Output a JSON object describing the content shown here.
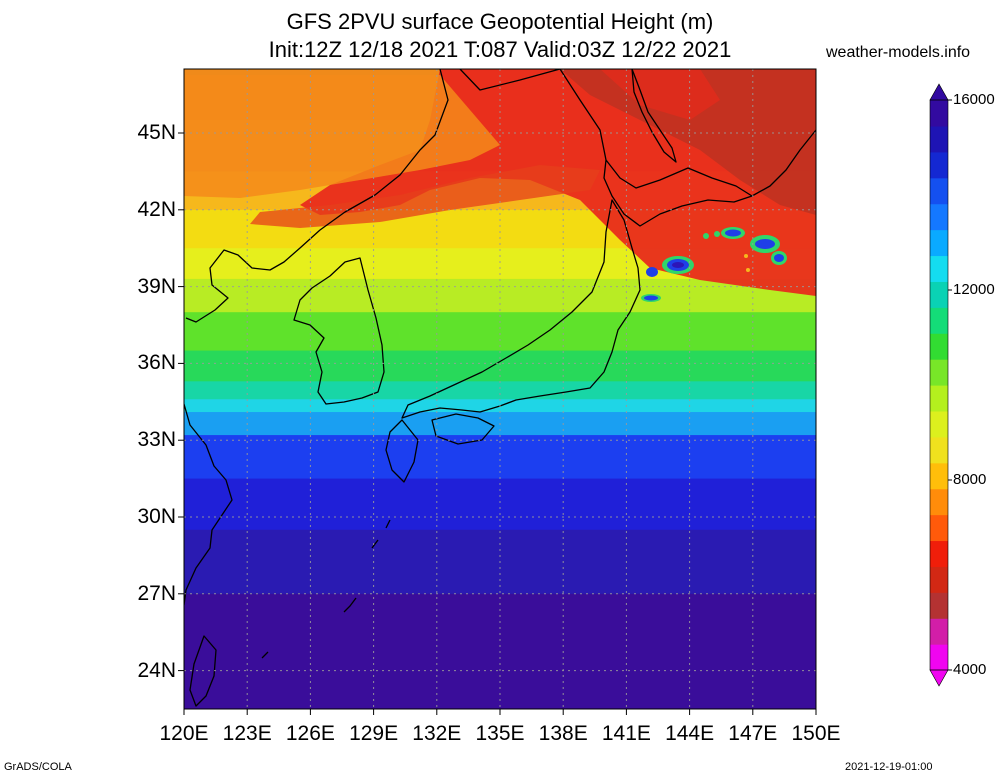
{
  "title": {
    "line1": "GFS 2PVU surface Geopotential Height (m)",
    "line2": "Init:12Z 12/18 2021 T:087 Valid:03Z 12/22 2021"
  },
  "watermark": "weather-models.info",
  "footer": {
    "left": "GrADS/COLA",
    "right": "2021-12-19-01:00"
  },
  "map": {
    "lon_range": [
      120,
      150
    ],
    "lat_range": [
      22.5,
      47.5
    ],
    "lat_labels": [
      {
        "lat": 45,
        "text": "45N"
      },
      {
        "lat": 42,
        "text": "42N"
      },
      {
        "lat": 39,
        "text": "39N"
      },
      {
        "lat": 36,
        "text": "36N"
      },
      {
        "lat": 33,
        "text": "33N"
      },
      {
        "lat": 30,
        "text": "30N"
      },
      {
        "lat": 27,
        "text": "27N"
      },
      {
        "lat": 24,
        "text": "24N"
      }
    ],
    "lon_labels": [
      {
        "lon": 120,
        "text": "120E"
      },
      {
        "lon": 123,
        "text": "123E"
      },
      {
        "lon": 126,
        "text": "126E"
      },
      {
        "lon": 129,
        "text": "129E"
      },
      {
        "lon": 132,
        "text": "132E"
      },
      {
        "lon": 135,
        "text": "135E"
      },
      {
        "lon": 138,
        "text": "138E"
      },
      {
        "lon": 141,
        "text": "141E"
      },
      {
        "lon": 144,
        "text": "144E"
      },
      {
        "lon": 147,
        "text": "147E"
      },
      {
        "lon": 150,
        "text": "150E"
      }
    ],
    "field_bands": [
      {
        "lat": 47.5,
        "color": "#f08a1a"
      },
      {
        "lat": 45.5,
        "color": "#f29a1f"
      },
      {
        "lat": 43.5,
        "color": "#f6b81c"
      },
      {
        "lat": 42.0,
        "color": "#f3dc12"
      },
      {
        "lat": 40.5,
        "color": "#e6ef1c"
      },
      {
        "lat": 39.3,
        "color": "#b8ec24"
      },
      {
        "lat": 38.0,
        "color": "#5fe22b"
      },
      {
        "lat": 36.5,
        "color": "#28d95a"
      },
      {
        "lat": 35.3,
        "color": "#18d6a6"
      },
      {
        "lat": 34.6,
        "color": "#1fd5e6"
      },
      {
        "lat": 34.1,
        "color": "#1a9ff2"
      },
      {
        "lat": 33.2,
        "color": "#1c3ff0"
      },
      {
        "lat": 31.5,
        "color": "#2020d8"
      },
      {
        "lat": 29.5,
        "color": "#2a1bb2"
      },
      {
        "lat": 27.0,
        "color": "#3a0d9a"
      },
      {
        "lat": 22.5,
        "color": "#3a0d9a"
      }
    ],
    "red_region_color": "#e8271c",
    "dark_red_color": "#b43222"
  },
  "colorbar": {
    "colors": [
      "#f005f0",
      "#d21ea8",
      "#b43232",
      "#d22814",
      "#f01e0a",
      "#ff5a0a",
      "#ff8c0a",
      "#ffbe0a",
      "#f0e11e",
      "#dcf01e",
      "#b4f01e",
      "#78e628",
      "#32dc32",
      "#14dc78",
      "#0ad2b4",
      "#14dcf0",
      "#0aaaff",
      "#1478ff",
      "#1450f0",
      "#1428d2",
      "#1e14b4",
      "#320aa0"
    ],
    "ticks": [
      {
        "value": 4000,
        "text": "4000"
      },
      {
        "value": 8000,
        "text": "8000"
      },
      {
        "value": 12000,
        "text": "12000"
      },
      {
        "value": 16000,
        "text": "16000"
      }
    ],
    "range": [
      4000,
      16000
    ]
  }
}
